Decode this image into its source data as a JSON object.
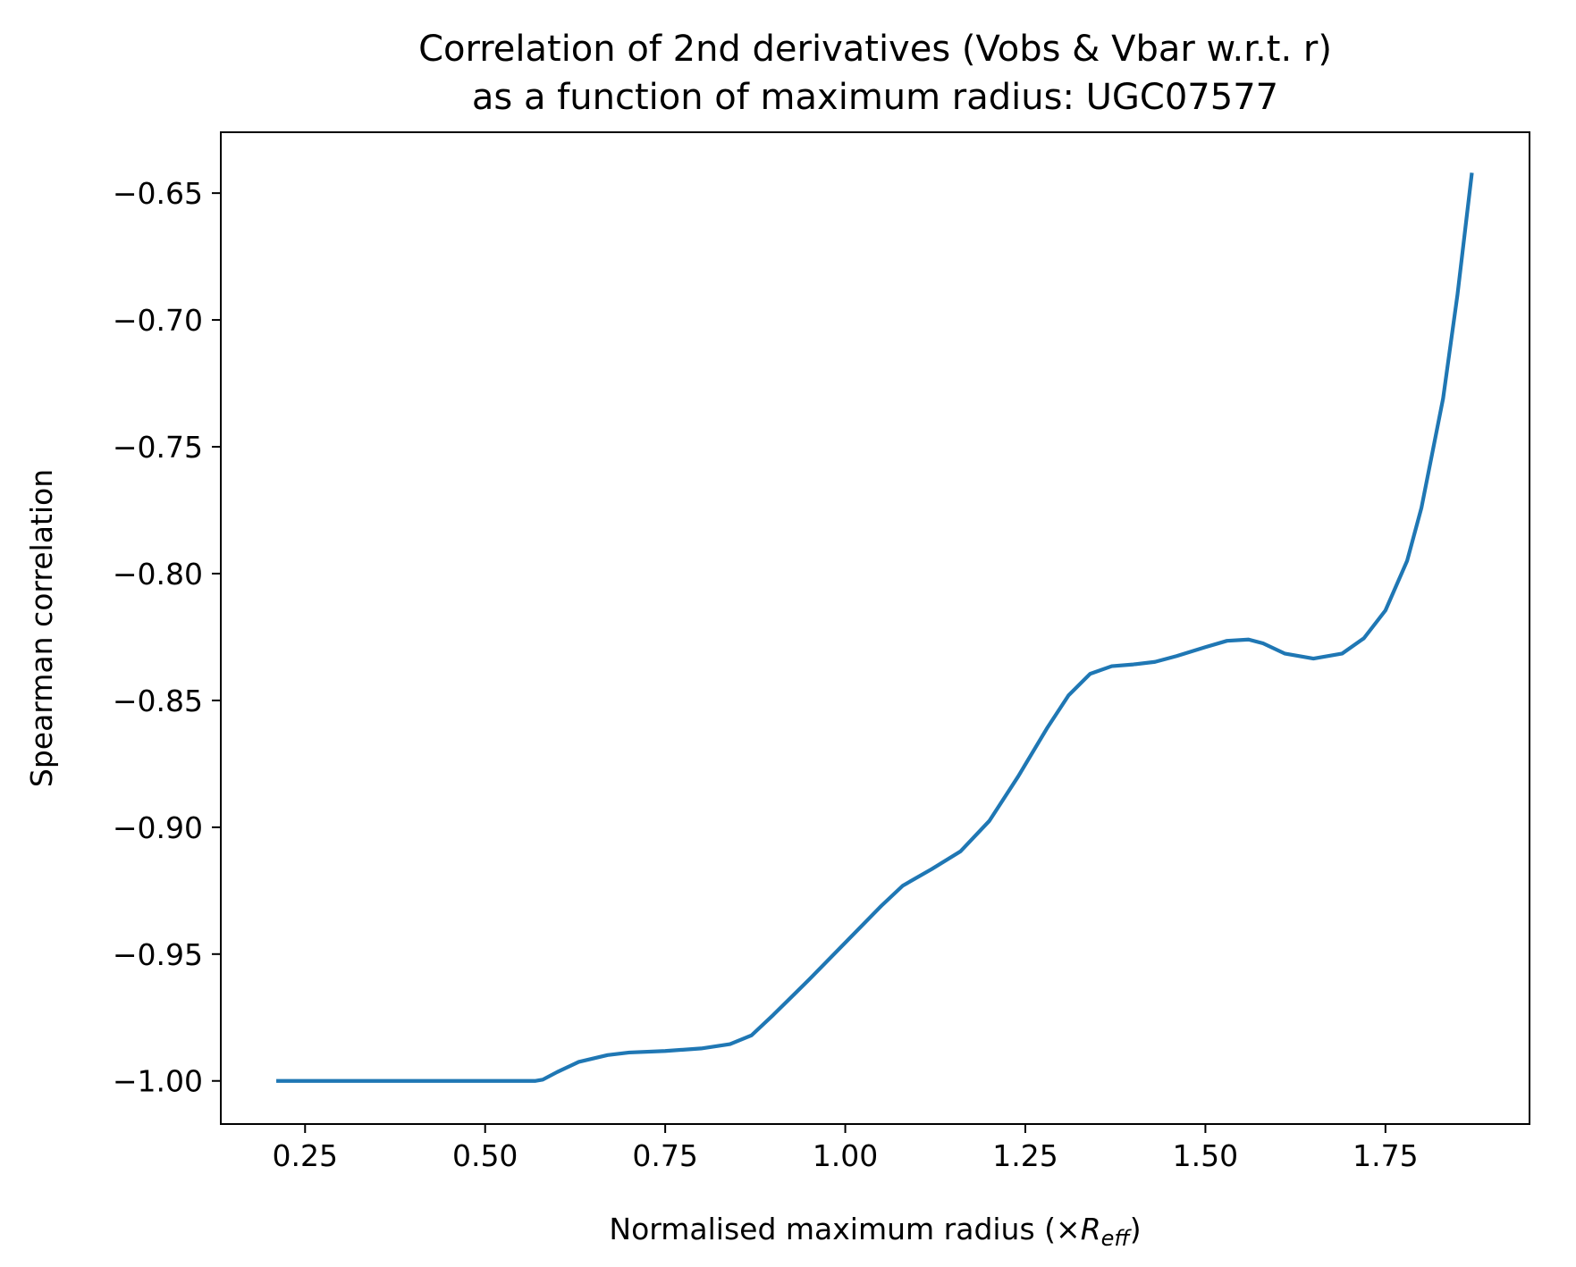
{
  "chart_data": {
    "type": "line",
    "title_lines": [
      "Correlation of 2nd derivatives (Vobs & Vbar w.r.t. r)",
      "as a function of maximum radius: UGC07577"
    ],
    "xlabel_main": "Normalised maximum radius (×",
    "xlabel_symbol": "R",
    "xlabel_subscript": "eff",
    "xlabel_close": ")",
    "ylabel": "Spearman correlation",
    "xlim": [
      0.133,
      1.95
    ],
    "ylim": [
      -1.017,
      -0.626
    ],
    "x_ticks": [
      0.25,
      0.5,
      0.75,
      1.0,
      1.25,
      1.5,
      1.75
    ],
    "x_tick_labels": [
      "0.25",
      "0.50",
      "0.75",
      "1.00",
      "1.25",
      "1.50",
      "1.75"
    ],
    "y_ticks": [
      -0.65,
      -0.7,
      -0.75,
      -0.8,
      -0.85,
      -0.9,
      -0.95,
      -1.0
    ],
    "y_tick_labels": [
      "−0.65",
      "−0.70",
      "−0.75",
      "−0.80",
      "−0.85",
      "−0.90",
      "−0.95",
      "−1.00"
    ],
    "grid": false,
    "line_color": "#1f77b4",
    "series": [
      {
        "x": [
          0.21,
          0.3,
          0.4,
          0.5,
          0.57,
          0.58,
          0.6,
          0.63,
          0.67,
          0.7,
          0.75,
          0.8,
          0.84,
          0.87,
          0.9,
          0.95,
          1.0,
          1.05,
          1.08,
          1.12,
          1.16,
          1.2,
          1.24,
          1.28,
          1.31,
          1.34,
          1.37,
          1.4,
          1.43,
          1.46,
          1.5,
          1.53,
          1.56,
          1.58,
          1.61,
          1.65,
          1.69,
          1.72,
          1.75,
          1.78,
          1.8,
          1.83,
          1.85,
          1.87
        ],
        "y": [
          -1.0,
          -1.0,
          -1.0,
          -1.0,
          -1.0,
          -0.9995,
          -0.9965,
          -0.9925,
          -0.9898,
          -0.9888,
          -0.9882,
          -0.9872,
          -0.9855,
          -0.982,
          -0.974,
          -0.96,
          -0.9455,
          -0.931,
          -0.923,
          -0.9165,
          -0.9095,
          -0.8975,
          -0.88,
          -0.861,
          -0.848,
          -0.8395,
          -0.8365,
          -0.8358,
          -0.8348,
          -0.8325,
          -0.829,
          -0.8265,
          -0.826,
          -0.8275,
          -0.8315,
          -0.8335,
          -0.8315,
          -0.8255,
          -0.8145,
          -0.795,
          -0.774,
          -0.731,
          -0.69,
          -0.642
        ]
      }
    ]
  }
}
